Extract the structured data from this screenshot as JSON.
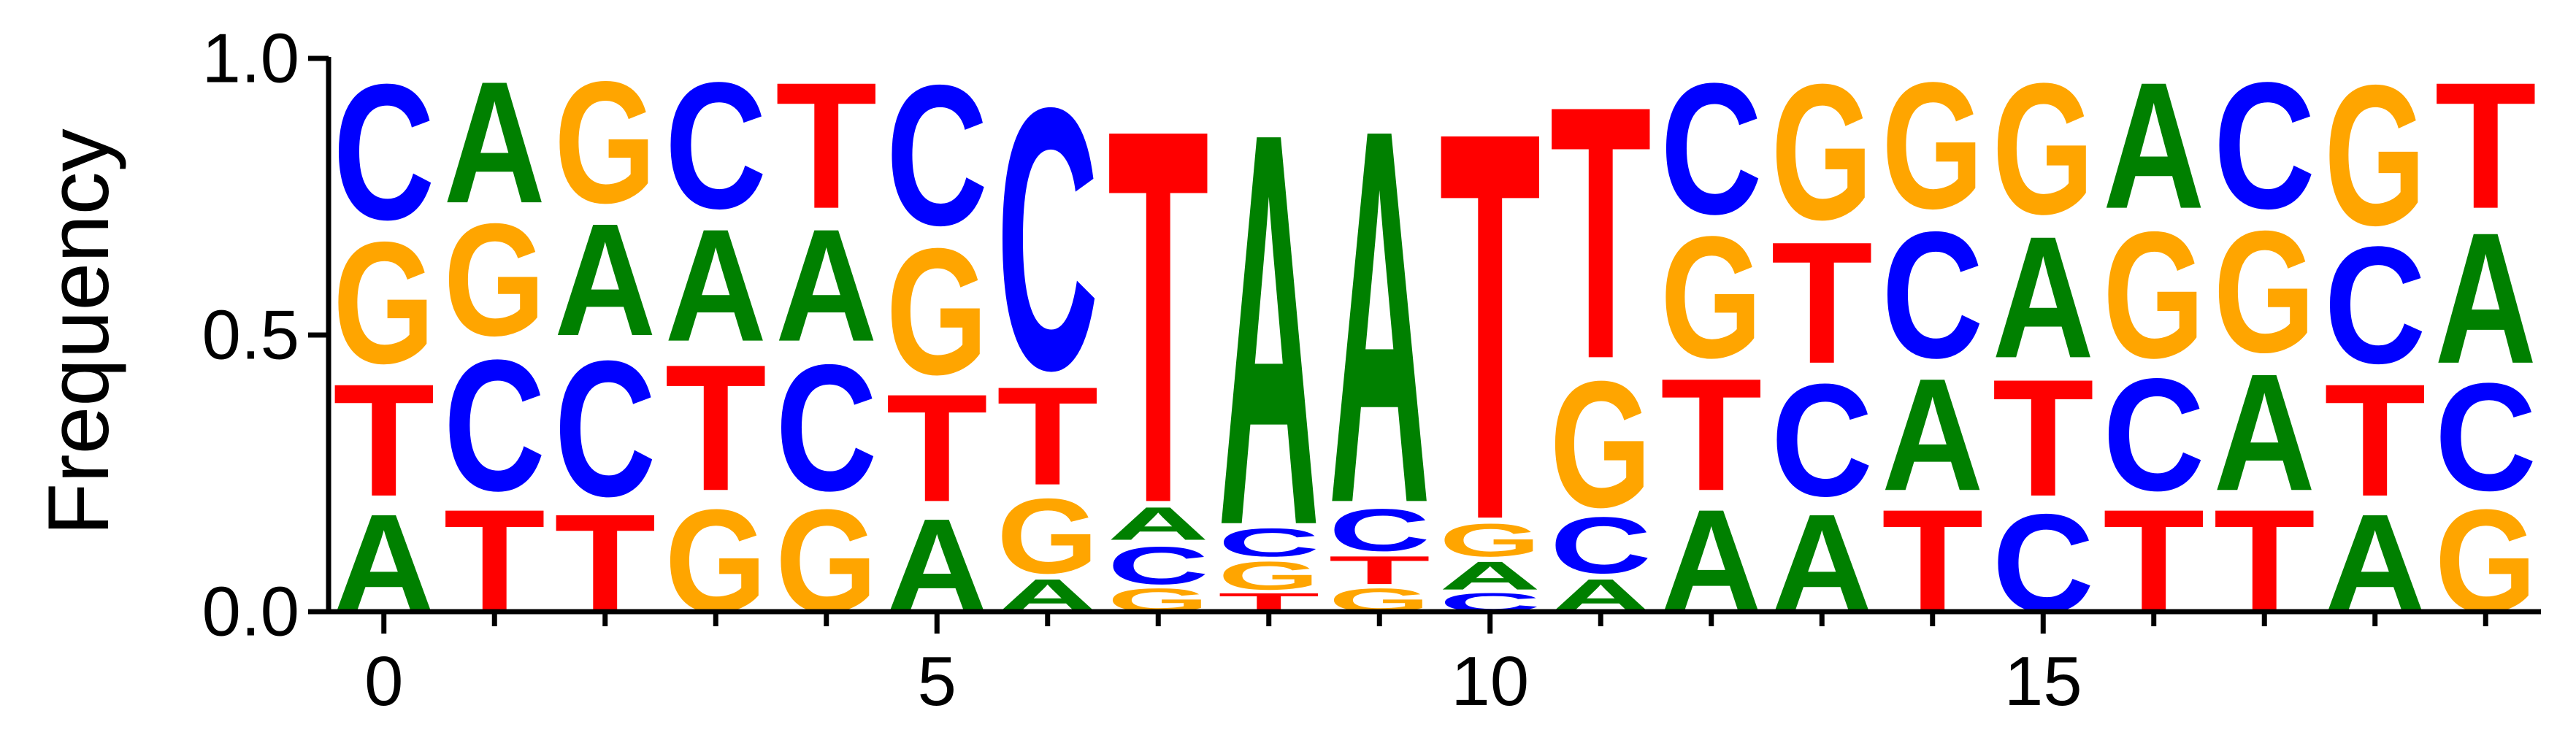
{
  "chart_data": {
    "type": "sequence-logo",
    "ylabel": "Frequency",
    "xlim": [
      -0.5,
      19.5
    ],
    "ylim": [
      0.0,
      1.0
    ],
    "xticks": [
      {
        "value": 0,
        "label": "0"
      },
      {
        "value": 5,
        "label": "5"
      },
      {
        "value": 10,
        "label": "10"
      },
      {
        "value": 15,
        "label": "15"
      }
    ],
    "yticks": [
      {
        "value": 0.0,
        "label": "0.0"
      },
      {
        "value": 0.5,
        "label": "0.5"
      },
      {
        "value": 1.0,
        "label": "1.0"
      }
    ],
    "colors": {
      "A": "#008000",
      "C": "#0000ff",
      "G": "#ffa500",
      "T": "#ff0000"
    },
    "positions": [
      {
        "pos": 0,
        "stack": [
          {
            "letter": "A",
            "freq": 0.21
          },
          {
            "letter": "T",
            "freq": 0.24
          },
          {
            "letter": "G",
            "freq": 0.26
          },
          {
            "letter": "C",
            "freq": 0.29
          }
        ]
      },
      {
        "pos": 1,
        "stack": [
          {
            "letter": "T",
            "freq": 0.22
          },
          {
            "letter": "C",
            "freq": 0.28
          },
          {
            "letter": "G",
            "freq": 0.24
          },
          {
            "letter": "A",
            "freq": 0.26
          }
        ]
      },
      {
        "pos": 2,
        "stack": [
          {
            "letter": "T",
            "freq": 0.21
          },
          {
            "letter": "C",
            "freq": 0.29
          },
          {
            "letter": "A",
            "freq": 0.24
          },
          {
            "letter": "G",
            "freq": 0.26
          }
        ]
      },
      {
        "pos": 3,
        "stack": [
          {
            "letter": "G",
            "freq": 0.22
          },
          {
            "letter": "T",
            "freq": 0.27
          },
          {
            "letter": "A",
            "freq": 0.24
          },
          {
            "letter": "C",
            "freq": 0.27
          }
        ]
      },
      {
        "pos": 4,
        "stack": [
          {
            "letter": "G",
            "freq": 0.22
          },
          {
            "letter": "C",
            "freq": 0.27
          },
          {
            "letter": "A",
            "freq": 0.24
          },
          {
            "letter": "T",
            "freq": 0.27
          }
        ]
      },
      {
        "pos": 5,
        "stack": [
          {
            "letter": "A",
            "freq": 0.2
          },
          {
            "letter": "T",
            "freq": 0.23
          },
          {
            "letter": "G",
            "freq": 0.27
          },
          {
            "letter": "C",
            "freq": 0.3
          }
        ]
      },
      {
        "pos": 6,
        "stack": [
          {
            "letter": "A",
            "freq": 0.07
          },
          {
            "letter": "G",
            "freq": 0.16
          },
          {
            "letter": "T",
            "freq": 0.21
          },
          {
            "letter": "C",
            "freq": 0.56
          }
        ]
      },
      {
        "pos": 7,
        "stack": [
          {
            "letter": "G",
            "freq": 0.05
          },
          {
            "letter": "C",
            "freq": 0.08
          },
          {
            "letter": "A",
            "freq": 0.07
          },
          {
            "letter": "T",
            "freq": 0.8
          }
        ]
      },
      {
        "pos": 8,
        "stack": [
          {
            "letter": "T",
            "freq": 0.04
          },
          {
            "letter": "G",
            "freq": 0.06
          },
          {
            "letter": "C",
            "freq": 0.06
          },
          {
            "letter": "A",
            "freq": 0.84
          }
        ]
      },
      {
        "pos": 9,
        "stack": [
          {
            "letter": "G",
            "freq": 0.05
          },
          {
            "letter": "T",
            "freq": 0.06
          },
          {
            "letter": "C",
            "freq": 0.09
          },
          {
            "letter": "A",
            "freq": 0.8
          }
        ]
      },
      {
        "pos": 10,
        "stack": [
          {
            "letter": "C",
            "freq": 0.04
          },
          {
            "letter": "A",
            "freq": 0.06
          },
          {
            "letter": "G",
            "freq": 0.07
          },
          {
            "letter": "T",
            "freq": 0.83
          }
        ]
      },
      {
        "pos": 11,
        "stack": [
          {
            "letter": "A",
            "freq": 0.07
          },
          {
            "letter": "C",
            "freq": 0.12
          },
          {
            "letter": "G",
            "freq": 0.27
          },
          {
            "letter": "T",
            "freq": 0.54
          }
        ]
      },
      {
        "pos": 12,
        "stack": [
          {
            "letter": "A",
            "freq": 0.22
          },
          {
            "letter": "T",
            "freq": 0.24
          },
          {
            "letter": "G",
            "freq": 0.26
          },
          {
            "letter": "C",
            "freq": 0.28
          }
        ]
      },
      {
        "pos": 13,
        "stack": [
          {
            "letter": "A",
            "freq": 0.21
          },
          {
            "letter": "C",
            "freq": 0.24
          },
          {
            "letter": "T",
            "freq": 0.26
          },
          {
            "letter": "G",
            "freq": 0.29
          }
        ]
      },
      {
        "pos": 14,
        "stack": [
          {
            "letter": "T",
            "freq": 0.22
          },
          {
            "letter": "A",
            "freq": 0.24
          },
          {
            "letter": "C",
            "freq": 0.27
          },
          {
            "letter": "G",
            "freq": 0.27
          }
        ]
      },
      {
        "pos": 15,
        "stack": [
          {
            "letter": "C",
            "freq": 0.21
          },
          {
            "letter": "T",
            "freq": 0.25
          },
          {
            "letter": "A",
            "freq": 0.26
          },
          {
            "letter": "G",
            "freq": 0.28
          }
        ]
      },
      {
        "pos": 16,
        "stack": [
          {
            "letter": "T",
            "freq": 0.22
          },
          {
            "letter": "C",
            "freq": 0.24
          },
          {
            "letter": "G",
            "freq": 0.27
          },
          {
            "letter": "A",
            "freq": 0.27
          }
        ]
      },
      {
        "pos": 17,
        "stack": [
          {
            "letter": "T",
            "freq": 0.22
          },
          {
            "letter": "A",
            "freq": 0.25
          },
          {
            "letter": "G",
            "freq": 0.26
          },
          {
            "letter": "C",
            "freq": 0.27
          }
        ]
      },
      {
        "pos": 18,
        "stack": [
          {
            "letter": "A",
            "freq": 0.21
          },
          {
            "letter": "T",
            "freq": 0.24
          },
          {
            "letter": "C",
            "freq": 0.25
          },
          {
            "letter": "G",
            "freq": 0.3
          }
        ]
      },
      {
        "pos": 19,
        "stack": [
          {
            "letter": "G",
            "freq": 0.22
          },
          {
            "letter": "C",
            "freq": 0.23
          },
          {
            "letter": "A",
            "freq": 0.28
          },
          {
            "letter": "T",
            "freq": 0.27
          }
        ]
      }
    ]
  }
}
